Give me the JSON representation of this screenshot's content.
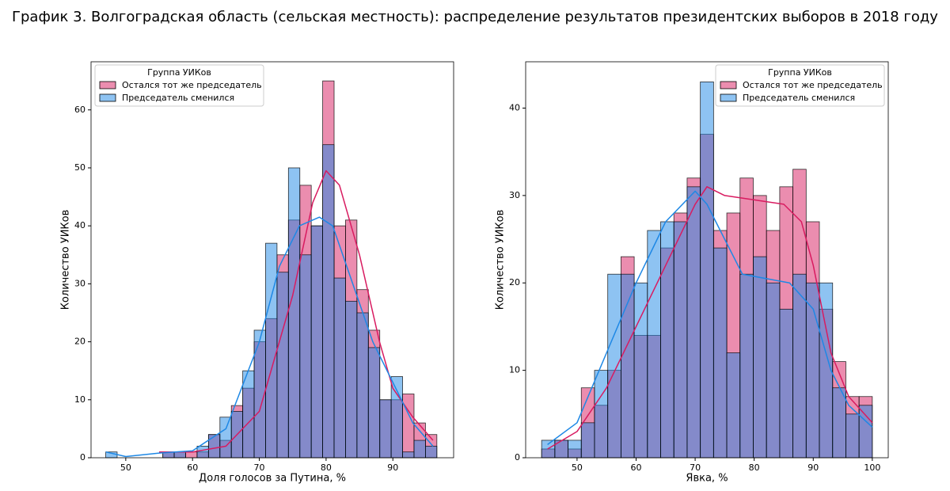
{
  "title": "График 3. Волгоградская область (сельская местность): распределение результатов президентских выборов в 2018 году",
  "chart_data": [
    {
      "type": "histogram",
      "xlabel": "Доля голосов за Путина, %",
      "ylabel": "Количество УИКов",
      "bins": [
        47,
        48.71,
        50.42,
        52.13,
        53.84,
        55.55,
        57.26,
        58.97,
        60.68,
        62.39,
        64.1,
        65.81,
        67.52,
        69.23,
        70.94,
        72.65,
        74.36,
        76.07,
        77.78,
        79.49,
        81.2,
        82.91,
        84.62,
        86.33,
        88.04,
        89.75,
        91.46,
        93.17,
        94.88,
        96.59
      ],
      "series": [
        {
          "name": "Остался тот же председатель",
          "color": "#d81b60",
          "values": [
            0,
            0,
            0,
            0,
            0,
            1,
            1,
            1,
            1,
            4,
            3,
            9,
            12,
            20,
            24,
            35,
            41,
            47,
            40,
            65,
            40,
            41,
            29,
            22,
            10,
            10,
            11,
            6,
            4
          ],
          "kde": {
            "x": [
              55,
              60,
              65,
              70,
              75,
              78,
              80,
              82,
              85,
              88,
              90,
              93,
              96
            ],
            "y": [
              1,
              1,
              2,
              8,
              28,
              44,
              49.5,
              47,
              35,
              20,
              12,
              7,
              3
            ]
          }
        },
        {
          "name": "Председатель сменился",
          "color": "#1e88e5",
          "values": [
            1,
            0,
            0,
            0,
            0,
            1,
            1,
            0,
            2,
            4,
            7,
            8,
            15,
            22,
            37,
            32,
            50,
            35,
            40,
            54,
            31,
            27,
            25,
            19,
            10,
            14,
            1,
            3,
            2
          ],
          "kde": {
            "x": [
              47,
              50,
              55,
              60,
              65,
              70,
              73,
              76,
              79,
              81,
              84,
              87,
              90,
              93,
              96
            ],
            "y": [
              1,
              0.2,
              0.8,
              1.2,
              5,
              20,
              33,
              40,
              41.5,
              40,
              30,
              20,
              13,
              6,
              2
            ]
          }
        }
      ],
      "legend": {
        "title": "Группа УИКов",
        "position": "upper left"
      },
      "xlim": [
        44.8,
        99.1
      ],
      "ylim": [
        0,
        68.3
      ],
      "xticks": [
        50,
        60,
        70,
        80,
        90
      ],
      "yticks": [
        0,
        10,
        20,
        30,
        40,
        50,
        60
      ]
    },
    {
      "type": "histogram",
      "xlabel": "Явка, %",
      "ylabel": "Количество УИКов",
      "bins": [
        44,
        46.24,
        48.48,
        50.72,
        52.96,
        55.2,
        57.44,
        59.68,
        61.92,
        64.16,
        66.4,
        68.64,
        70.88,
        73.12,
        75.36,
        77.6,
        79.84,
        82.08,
        84.32,
        86.56,
        88.8,
        91.04,
        93.28,
        95.52,
        97.76,
        100
      ],
      "series": [
        {
          "name": "Остался тот же председатель",
          "color": "#d81b60",
          "values": [
            1,
            2,
            1,
            8,
            6,
            10,
            23,
            14,
            14,
            24,
            28,
            32,
            37,
            26,
            28,
            32,
            30,
            26,
            31,
            33,
            27,
            17,
            11,
            7,
            7
          ],
          "kde": {
            "x": [
              45,
              50,
              55,
              60,
              65,
              70,
              72,
              75,
              80,
              85,
              88,
              90,
              93,
              96,
              100
            ],
            "y": [
              1,
              3,
              8,
              15,
              22,
              29,
              31,
              30,
              29.5,
              29,
              27,
              22,
              12,
              7,
              4
            ]
          }
        },
        {
          "name": "Председатель сменился",
          "color": "#1e88e5",
          "values": [
            2,
            2,
            2,
            4,
            10,
            21,
            21,
            20,
            26,
            27,
            27,
            31,
            43,
            24,
            12,
            21,
            23,
            20,
            17,
            21,
            20,
            20,
            8,
            5,
            6
          ],
          "kde": {
            "x": [
              45,
              50,
              55,
              60,
              65,
              70,
              72,
              75,
              78,
              82,
              86,
              90,
              93,
              96,
              100
            ],
            "y": [
              1.5,
              4,
              12,
              20,
              27,
              30.5,
              29,
              25,
              21,
              20.5,
              20,
              17,
              10,
              6,
              3.5
            ]
          }
        }
      ],
      "legend": {
        "title": "Группа УИКов",
        "position": "upper right"
      },
      "xlim": [
        41.3,
        102.7
      ],
      "ylim": [
        0,
        45.3
      ],
      "xticks": [
        50,
        60,
        70,
        80,
        90,
        100
      ],
      "yticks": [
        0,
        10,
        20,
        30,
        40
      ]
    }
  ]
}
